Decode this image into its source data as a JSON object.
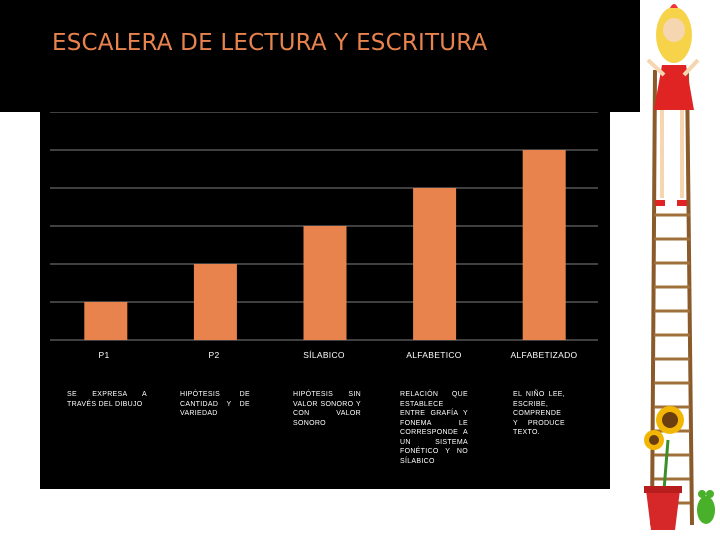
{
  "title": "ESCALERA DE LECTURA Y ESCRITURA",
  "chart_data": {
    "type": "bar",
    "categories": [
      "P1",
      "P2",
      "SÍLABICO",
      "ALFABETICO",
      "ALFABETIZADO"
    ],
    "values": [
      1,
      2,
      3,
      4,
      5
    ],
    "ylim": [
      0,
      6
    ],
    "grid": true,
    "bar_color": "#e8834d",
    "descriptions": [
      "SE EXPRESA A TRAVÉS DEL DIBUJO",
      "HIPÓTESIS DE CANTIDAD Y DE VARIEDAD",
      "HIPÓTESIS SIN VALOR SONORO Y CON VALOR SONORO",
      "RELACIÓN QUE ESTABLECE ENTRE GRAFÍA Y FONEMA LE CORRESPONDE A UN SISTEMA FONÉTICO Y NO SÍLABICO",
      "EL NIÑO LEE, ESCRIBE, COMPRENDE Y PRODUCE TEXTO."
    ]
  },
  "colors": {
    "background": "#000000",
    "title": "#e8834d",
    "gridline": "#7f7f7f",
    "text": "#ffffff"
  },
  "decorations": [
    "girl-on-ladder-illustration",
    "ladder-icon",
    "sunflower-icon",
    "flower-pot-icon",
    "frog-icon"
  ]
}
